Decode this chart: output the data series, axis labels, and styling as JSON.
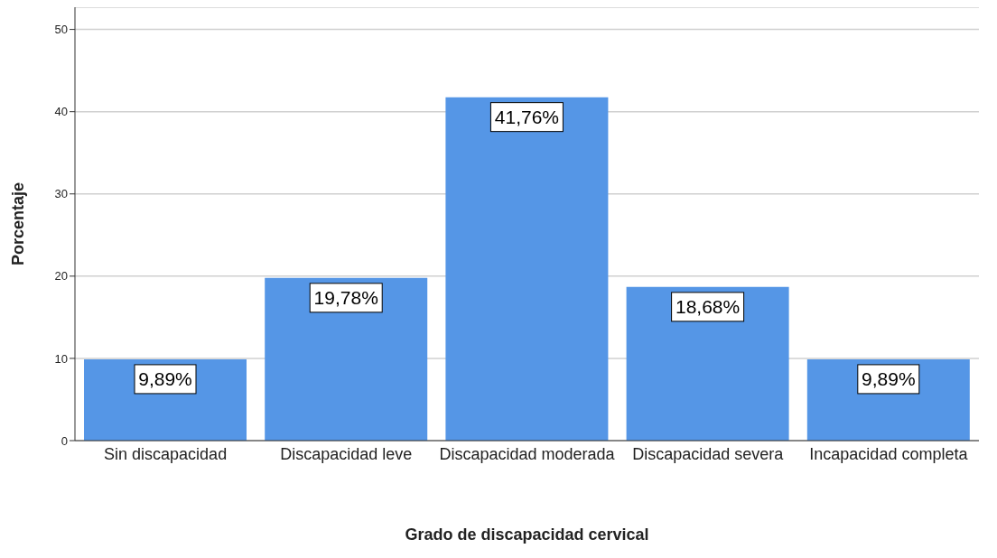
{
  "chart_data": {
    "type": "bar",
    "xlabel": "Grado de discapacidad cervical",
    "ylabel": "Porcentaje",
    "categories": [
      "Sin discapacidad",
      "Discapacidad leve",
      "Discapacidad moderada",
      "Discapacidad severa",
      "Incapacidad completa"
    ],
    "values": [
      9.89,
      19.78,
      41.76,
      18.68,
      9.89
    ],
    "value_labels": [
      "9,89%",
      "19,78%",
      "41,76%",
      "18,68%",
      "9,89%"
    ],
    "color": "#5596e6",
    "ylim": [
      0,
      52.7
    ],
    "yticks": [
      0,
      10,
      20,
      30,
      40,
      50
    ],
    "grid": "y",
    "legend": false
  }
}
